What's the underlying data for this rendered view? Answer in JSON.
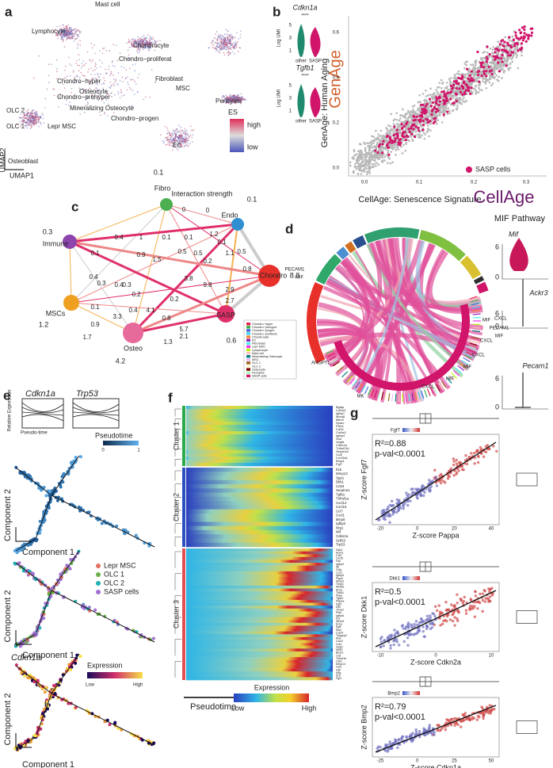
{
  "panel_a": {
    "label": "a",
    "clusters": [
      "Mast cell",
      "Lymphocyte",
      "Chondrocyte",
      "Chondro−proliferat",
      "Chondro−hyper",
      "Fibroblast",
      "MSC",
      "Osteocyte",
      "Chondro−prehyper",
      "Mineralizing Osteocyte",
      "Chondro−progen",
      "OLC 2",
      "OLC 1",
      "Lepr MSC",
      "Pericytes",
      "EC",
      "Osteoblast"
    ],
    "legend_title": "ES",
    "legend_high": "high",
    "legend_low": "low",
    "axis_y": "UMAP2",
    "axis_x": "UMAP1"
  },
  "panel_b": {
    "label": "b",
    "violins": [
      {
        "gene": "Cdkn1a",
        "significance": "****"
      },
      {
        "gene": "Tgfb1",
        "significance": "****"
      }
    ],
    "violin_axis": "Log UMI",
    "violin_ticks": [
      "1",
      "3",
      "5"
    ],
    "groups": [
      "other",
      "SASP"
    ],
    "logo_y": "GenAge",
    "logo_x": "CellAge",
    "y_label": "GenAge: Human Aging",
    "x_label": "CellAge: Senescence Signature",
    "xticks": [
      "0.0",
      "0.1",
      "0.2",
      "0.3"
    ],
    "yticks": [
      "0.0",
      "0.2",
      "0.4",
      "0.6"
    ],
    "legend": "SASP cells"
  },
  "panel_c": {
    "label": "c",
    "title": "Interaction strength",
    "nodes": [
      {
        "name": "Fibro",
        "value": "0.1"
      },
      {
        "name": "Endo",
        "value": "0.1"
      },
      {
        "name": "Immune",
        "value": "0.3"
      },
      {
        "name": "Chondro",
        "value": "8.8"
      },
      {
        "name": "MSCs",
        "value": "1.2"
      },
      {
        "name": "SASP",
        "value": "0.6"
      },
      {
        "name": "Osteo",
        "value": "4.2"
      }
    ],
    "edge_labels": [
      "0",
      "0",
      "1.2",
      "0.1",
      "0.1",
      "1",
      "0.4",
      "0.1",
      "0.9",
      "1.5",
      "0.5",
      "0.5",
      "0.2",
      "0.1",
      "1.1",
      "0.5",
      "0.8",
      "0.4",
      "0.3",
      "0.4",
      "0.3",
      "0.2",
      "3.8",
      "0.1",
      "0.4",
      "4.1",
      "0.2",
      "9.8",
      "2.9",
      "2.7",
      "3.3",
      "0.9",
      "0.8",
      "5.7",
      "1.7",
      "2.1",
      "1.3"
    ],
    "legend": [
      "Chondro−hyper",
      "Chondro−prehyper",
      "Chondro−progen",
      "Chondro−proliferat",
      "Chondrocyte",
      "EC",
      "Fibroblast",
      "Lepr MSC",
      "Lymphocyte",
      "Mast cell",
      "Mineralizing Osteocyte",
      "MSC",
      "OLC 1",
      "OLC 2",
      "Osteocyte",
      "Pericytes",
      "SASP cells"
    ]
  },
  "panel_d": {
    "label": "d",
    "title": "MIF Pathway",
    "chord_labels": [
      "PECAM1",
      "MIF",
      "ANGPTL",
      "MK",
      "CXCL",
      "MIF",
      "MIF",
      "CXCL",
      "CXCL",
      "MIF",
      "PECAM1",
      "CXCL",
      "MIF"
    ],
    "violins": [
      "Mif",
      "Ackr3",
      "Pecam1"
    ],
    "violin_ticks": [
      "6",
      "0"
    ]
  },
  "panel_e": {
    "label": "e",
    "genes": [
      "Cdkn1a",
      "Trp53"
    ],
    "y_label": "Relative Expression",
    "x_label": "Pseudo-time",
    "pseudotime_title": "Pseudotime",
    "pseudotime_ticks": [
      "0",
      "1"
    ],
    "component_y": "Component 2",
    "component_x": "Component 1",
    "groups": [
      "Lepr MSC",
      "OLC 1",
      "OLC 2",
      "SASP cells"
    ],
    "gene3": "Cdkn1a",
    "expr_title": "Expression",
    "expr_low": "Low",
    "expr_high": "High"
  },
  "panel_f": {
    "label": "f",
    "clusters": [
      "Cluster 1",
      "Cluster 2",
      "Cluster 3"
    ],
    "genes": [
      [
        "Bglap",
        "Col2a1",
        "Igfbp7",
        "Mxra8",
        "Ifitm3",
        "Sparc",
        "Fbln1",
        "Cd34",
        "Col4a2",
        "Igfbp4",
        "Gsn",
        "Vegfa",
        "Cdkn1a",
        "Tnfrsf11b",
        "Serpine2",
        "Ccl2",
        "Col15a1",
        "Bmp4",
        "Fgf7"
      ],
      [
        "Il1b",
        "Mmp13",
        "Spp1",
        "Dkk1",
        "Cd44",
        "Serpine1",
        "Tgfb1",
        "Tnfrsf1a",
        "Cxcl12",
        "Cxcl16",
        "Ccl7",
        "Cxcl1",
        "Bmp6",
        "Igfbp2",
        "Nrg1",
        "Mif",
        "Cdkn2a",
        "Gdf15",
        "Trp53"
      ],
      [
        "Dkk3",
        "Ackr3",
        "Ccl9",
        "Cxcl5",
        "Fas",
        "Igfbp3",
        "Il6",
        "Ctsb",
        "Lcn2",
        "Igfbp5",
        "Ptgs2",
        "Mmp3",
        "Timp1",
        "Wnt5a",
        "Areg",
        "Thbs1",
        "Plaur",
        "Tgfb2",
        "Pappa",
        "Fgf2",
        "Il33",
        "Timp2",
        "Plau",
        "Igfbp6",
        "Fst",
        "Wnt16",
        "Ereg",
        "Egfr",
        "Ets2",
        "Ccl20",
        "Tubgcp2",
        "Plat",
        "Cxcl2",
        "Ccl2",
        "Vegfc",
        "Wnt2",
        "Bmp2",
        "Ctsl",
        "Tnfrsf1b",
        "Ctsd",
        "Mmp14",
        "Csf1",
        "Hgf",
        "Ang",
        "Il15",
        "Fgf1"
      ]
    ],
    "x_label": "Pseudotime",
    "legend_title": "Expression",
    "legend_low": "Low",
    "legend_high": "High"
  },
  "panel_g": {
    "label": "g",
    "plots": [
      {
        "r2": "R²=0.88",
        "pval": "p-val<0.0001",
        "y_label": "Z-score Fgf7",
        "x_label": "Z-score Pappa",
        "legend_gene": "Fgf7",
        "xticks": [
          "-20",
          "0",
          "20",
          "40"
        ]
      },
      {
        "r2": "R²=0.5",
        "pval": "p-val<0.0001",
        "y_label": "Z-score Dkk1",
        "x_label": "Z-score Cdkn2a",
        "legend_gene": "Dkk1",
        "xticks": [
          "-10",
          "0",
          "10"
        ]
      },
      {
        "r2": "R²=0.79",
        "pval": "p-val<0.0001",
        "y_label": "Z-score Bmp2",
        "x_label": "Z-score Cdkn1a",
        "legend_gene": "Bmp2",
        "xticks": [
          "-25",
          "0",
          "25",
          "50"
        ]
      }
    ]
  }
}
